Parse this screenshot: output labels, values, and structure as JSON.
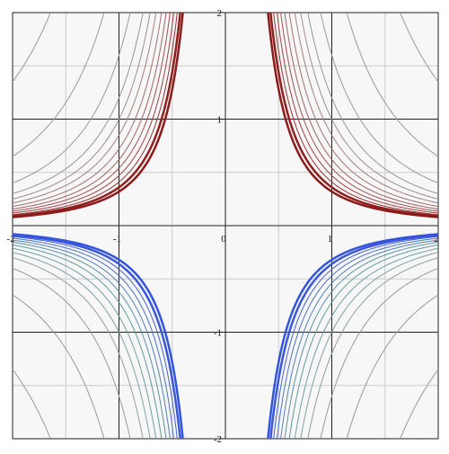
{
  "chart_data": {
    "type": "contour",
    "xlim": [
      -2,
      2
    ],
    "ylim": [
      -2,
      2
    ],
    "xticks": [
      -2,
      -1,
      0,
      1,
      2
    ],
    "yticks": [
      -2,
      -1,
      1,
      2
    ],
    "grid": true,
    "minor_grid": true,
    "levels": [
      {
        "value": 5.4,
        "color": "#999999"
      },
      {
        "value": 2.6,
        "color": "#999999"
      },
      {
        "value": 1.6,
        "color": "#999999"
      },
      {
        "value": 1.2,
        "color": "#9a9494"
      },
      {
        "value": 1.0,
        "color": "#a08c8c"
      },
      {
        "value": 0.85,
        "color": "#a08080"
      },
      {
        "value": 0.72,
        "color": "#a07070"
      },
      {
        "value": 0.62,
        "color": "#a06060"
      },
      {
        "value": 0.54,
        "color": "#a05050"
      },
      {
        "value": 0.47,
        "color": "#a04040"
      },
      {
        "value": 0.41,
        "color": "#993030"
      },
      {
        "value": 0.36,
        "color": "#902020"
      },
      {
        "value": 0.32,
        "color": "#8b1a1a"
      },
      {
        "value": -5.4,
        "color": "#999999"
      },
      {
        "value": -2.6,
        "color": "#999999"
      },
      {
        "value": -1.6,
        "color": "#999999"
      },
      {
        "value": -1.2,
        "color": "#8fa0a0"
      },
      {
        "value": -1.0,
        "color": "#80a0a0"
      },
      {
        "value": -0.85,
        "color": "#70a0a0"
      },
      {
        "value": -0.72,
        "color": "#609a9a"
      },
      {
        "value": -0.62,
        "color": "#5a90a8"
      },
      {
        "value": -0.54,
        "color": "#5080b8"
      },
      {
        "value": -0.47,
        "color": "#4a70c8"
      },
      {
        "value": -0.41,
        "color": "#4060d0"
      },
      {
        "value": -0.36,
        "color": "#3a58d8"
      },
      {
        "value": -0.32,
        "color": "#3355dd"
      }
    ]
  }
}
